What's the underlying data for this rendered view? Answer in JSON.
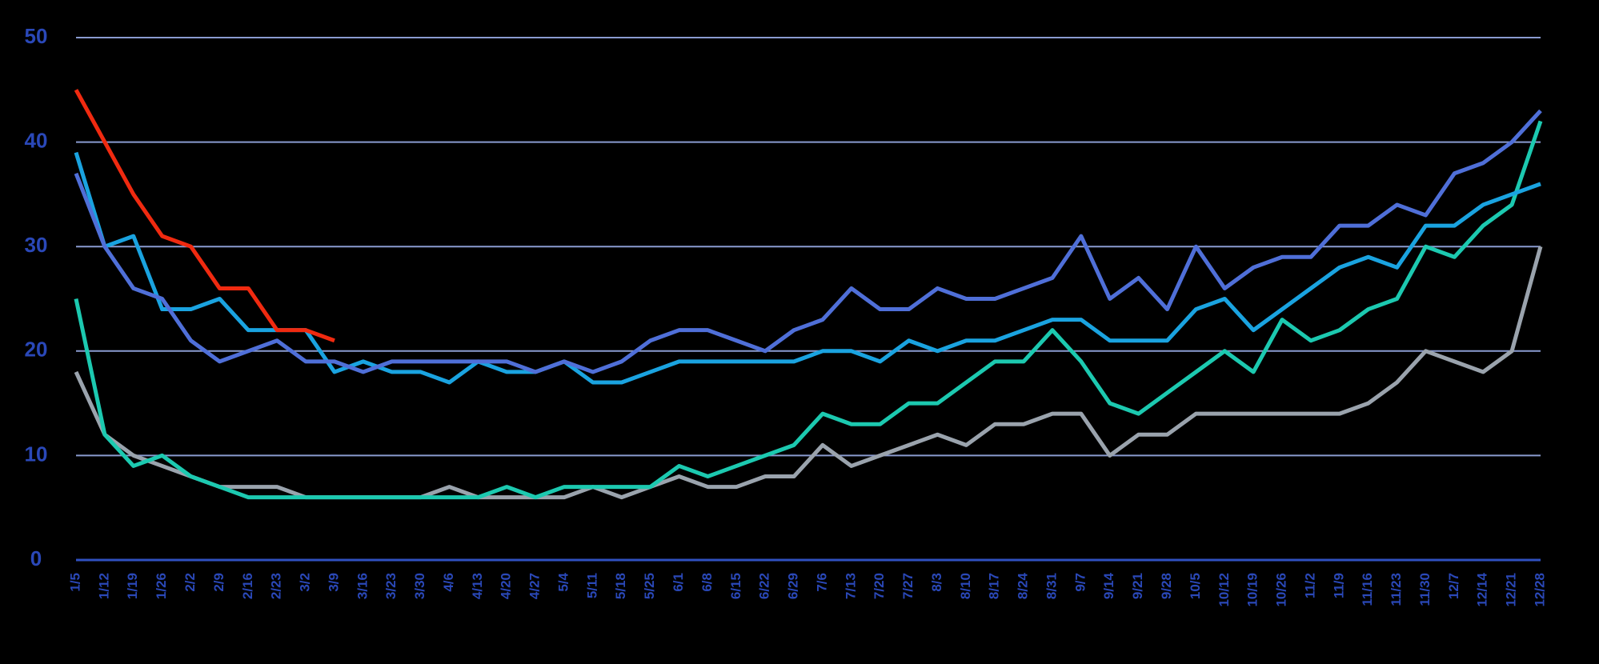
{
  "chart_data": {
    "type": "line",
    "categories": [
      "1/5",
      "1/12",
      "1/19",
      "1/26",
      "2/2",
      "2/9",
      "2/16",
      "2/23",
      "3/2",
      "3/9",
      "3/16",
      "3/23",
      "3/30",
      "4/6",
      "4/13",
      "4/20",
      "4/27",
      "5/4",
      "5/11",
      "5/18",
      "5/25",
      "6/1",
      "6/8",
      "6/15",
      "6/22",
      "6/29",
      "7/6",
      "7/13",
      "7/20",
      "7/27",
      "8/3",
      "8/10",
      "8/17",
      "8/24",
      "8/31",
      "9/7",
      "9/14",
      "9/21",
      "9/28",
      "10/5",
      "10/12",
      "10/19",
      "10/26",
      "11/2",
      "11/9",
      "11/16",
      "11/23",
      "11/30",
      "12/7",
      "12/14",
      "12/21",
      "12/28"
    ],
    "series": [
      {
        "color": "#9aa3ad",
        "values": [
          18,
          12,
          10,
          9,
          8,
          7,
          7,
          7,
          6,
          6,
          6,
          6,
          6,
          7,
          6,
          6,
          6,
          6,
          7,
          6,
          7,
          8,
          7,
          7,
          8,
          8,
          11,
          9,
          10,
          11,
          12,
          11,
          13,
          13,
          14,
          14,
          10,
          12,
          12,
          14,
          14,
          14,
          14,
          14,
          14,
          15,
          17,
          20,
          19,
          18,
          20,
          30
        ]
      },
      {
        "color": "#1cc9b0",
        "values": [
          25,
          12,
          9,
          10,
          8,
          7,
          6,
          6,
          6,
          6,
          6,
          6,
          6,
          6,
          6,
          7,
          6,
          7,
          7,
          7,
          7,
          9,
          8,
          9,
          10,
          11,
          14,
          13,
          13,
          15,
          15,
          17,
          19,
          19,
          22,
          19,
          15,
          14,
          16,
          18,
          20,
          18,
          23,
          21,
          22,
          24,
          25,
          30,
          29,
          32,
          34,
          42
        ]
      },
      {
        "color": "#1aa3e0",
        "values": [
          39,
          30,
          31,
          24,
          24,
          25,
          22,
          22,
          22,
          18,
          19,
          18,
          18,
          17,
          19,
          18,
          18,
          19,
          17,
          17,
          18,
          19,
          19,
          19,
          19,
          19,
          20,
          20,
          19,
          21,
          20,
          21,
          21,
          22,
          23,
          23,
          21,
          21,
          21,
          24,
          25,
          22,
          24,
          26,
          28,
          29,
          28,
          32,
          32,
          34,
          35,
          36
        ]
      },
      {
        "color": "#4f6fd8",
        "values": [
          37,
          30,
          26,
          25,
          21,
          19,
          20,
          21,
          19,
          19,
          18,
          19,
          19,
          19,
          19,
          19,
          18,
          19,
          18,
          19,
          21,
          22,
          22,
          21,
          20,
          22,
          23,
          26,
          24,
          24,
          26,
          25,
          25,
          26,
          27,
          31,
          25,
          27,
          24,
          30,
          26,
          28,
          29,
          29,
          32,
          32,
          34,
          33,
          37,
          38,
          40,
          43
        ]
      },
      {
        "color": "#f02a10",
        "values": [
          45,
          40,
          35,
          31,
          30,
          26,
          26,
          22,
          22,
          21,
          null,
          null,
          null,
          null,
          null,
          null,
          null,
          null,
          null,
          null,
          null,
          null,
          null,
          null,
          null,
          null,
          null,
          null,
          null,
          null,
          null,
          null,
          null,
          null,
          null,
          null,
          null,
          null,
          null,
          null,
          null,
          null,
          null,
          null,
          null,
          null,
          null,
          null,
          null,
          null,
          null,
          null
        ]
      }
    ],
    "ylim": [
      0,
      50
    ],
    "yticks": [
      0,
      10,
      20,
      30,
      40,
      50
    ],
    "grid": true
  }
}
